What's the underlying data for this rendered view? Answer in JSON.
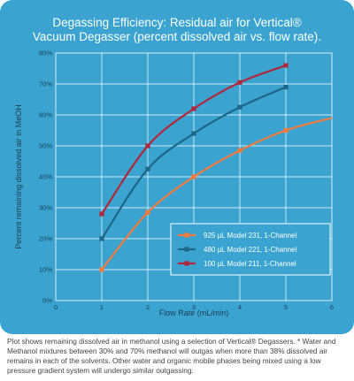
{
  "chart_data": {
    "type": "line",
    "title_line1": "Degassing Efficiency: Residual air for Vertical®",
    "title_line2": "Vacuum Degasser (percent dissolved air vs. flow rate).",
    "xlabel": "Flow Rate (mL/min)",
    "ylabel": "Percent remaining dissolved air in MeOH",
    "xlim": [
      0,
      6
    ],
    "ylim": [
      0,
      80
    ],
    "x_ticks": [
      "0",
      "1",
      "2",
      "3",
      "4",
      "5",
      "6"
    ],
    "y_ticks": [
      "0%",
      "10%",
      "20%",
      "30%",
      "40%",
      "50%",
      "60%",
      "70%",
      "80%"
    ],
    "grid": true,
    "legend_position": "bottom-right",
    "series": [
      {
        "name": "925 µL Model 231, 1-Channel",
        "color": "#f47b3c",
        "x": [
          1,
          2,
          3,
          4,
          5
        ],
        "values": [
          10,
          28.5,
          40,
          48.5,
          55
        ],
        "curve_extends_to": [
          6,
          59
        ]
      },
      {
        "name": "480 µL Model 221, 1-Channel",
        "color": "#1d6688",
        "x": [
          1,
          2,
          3,
          4,
          5
        ],
        "values": [
          20,
          42.5,
          54,
          62.5,
          69
        ]
      },
      {
        "name": "100 µL Model 211, 1-Channel",
        "color": "#b0283c",
        "x": [
          1,
          2,
          3,
          4,
          5
        ],
        "values": [
          28,
          50,
          62,
          70.5,
          76
        ]
      }
    ]
  },
  "caption": "Plot shows remaining dissolved air in methanol using a selection of Vertical® Degassers. * Water and Methanol mixtures between 30% and 70% methanol will outgas when more than 38% dissolved air remains in each of the solvents. Other water and organic mobile phases being mixed using a low pressure gradient system will undergo similar outgassing."
}
